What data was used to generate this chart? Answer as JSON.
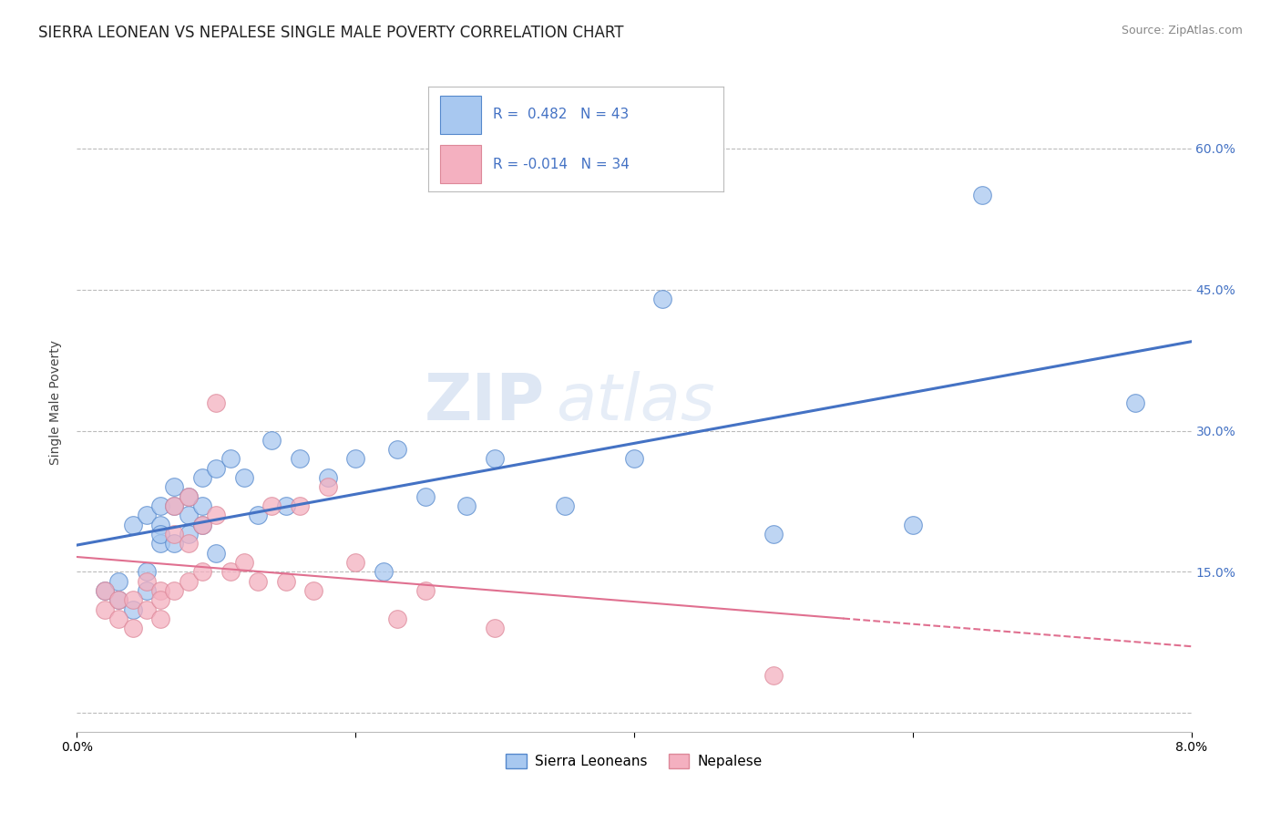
{
  "title": "SIERRA LEONEAN VS NEPALESE SINGLE MALE POVERTY CORRELATION CHART",
  "source": "Source: ZipAtlas.com",
  "ylabel": "Single Male Poverty",
  "xlim": [
    0.0,
    0.08
  ],
  "ylim": [
    -0.02,
    0.68
  ],
  "yticks": [
    0.0,
    0.15,
    0.3,
    0.45,
    0.6
  ],
  "ytick_labels": [
    "",
    "15.0%",
    "30.0%",
    "45.0%",
    "60.0%"
  ],
  "watermark_zip": "ZIP",
  "watermark_atlas": "atlas",
  "legend_blue_label": "Sierra Leoneans",
  "legend_pink_label": "Nepalese",
  "r_blue": " 0.482",
  "n_blue": "43",
  "r_pink": "-0.014",
  "n_pink": "34",
  "blue_fill": "#A8C8F0",
  "pink_fill": "#F4B0C0",
  "blue_edge": "#5588CC",
  "pink_edge": "#DD8899",
  "line_blue_color": "#4472C4",
  "line_pink_color": "#E07090",
  "grid_color": "#BBBBBB",
  "bg_color": "#FFFFFF",
  "title_fontsize": 12,
  "tick_fontsize": 10,
  "source_fontsize": 9,
  "blue_scatter_x": [
    0.002,
    0.003,
    0.003,
    0.004,
    0.004,
    0.005,
    0.005,
    0.005,
    0.006,
    0.006,
    0.006,
    0.006,
    0.007,
    0.007,
    0.007,
    0.008,
    0.008,
    0.008,
    0.009,
    0.009,
    0.009,
    0.01,
    0.01,
    0.011,
    0.012,
    0.013,
    0.014,
    0.015,
    0.016,
    0.018,
    0.02,
    0.022,
    0.023,
    0.025,
    0.028,
    0.03,
    0.035,
    0.04,
    0.042,
    0.05,
    0.06,
    0.065,
    0.076
  ],
  "blue_scatter_y": [
    0.13,
    0.12,
    0.14,
    0.11,
    0.2,
    0.13,
    0.21,
    0.15,
    0.18,
    0.22,
    0.2,
    0.19,
    0.22,
    0.24,
    0.18,
    0.23,
    0.19,
    0.21,
    0.2,
    0.22,
    0.25,
    0.17,
    0.26,
    0.27,
    0.25,
    0.21,
    0.29,
    0.22,
    0.27,
    0.25,
    0.27,
    0.15,
    0.28,
    0.23,
    0.22,
    0.27,
    0.22,
    0.27,
    0.44,
    0.19,
    0.2,
    0.55,
    0.33
  ],
  "pink_scatter_x": [
    0.002,
    0.002,
    0.003,
    0.003,
    0.004,
    0.004,
    0.005,
    0.005,
    0.006,
    0.006,
    0.006,
    0.007,
    0.007,
    0.007,
    0.008,
    0.008,
    0.008,
    0.009,
    0.009,
    0.01,
    0.01,
    0.011,
    0.012,
    0.013,
    0.014,
    0.015,
    0.016,
    0.017,
    0.018,
    0.02,
    0.023,
    0.025,
    0.03,
    0.05
  ],
  "pink_scatter_y": [
    0.11,
    0.13,
    0.1,
    0.12,
    0.09,
    0.12,
    0.11,
    0.14,
    0.1,
    0.13,
    0.12,
    0.22,
    0.13,
    0.19,
    0.14,
    0.23,
    0.18,
    0.15,
    0.2,
    0.21,
    0.33,
    0.15,
    0.16,
    0.14,
    0.22,
    0.14,
    0.22,
    0.13,
    0.24,
    0.16,
    0.1,
    0.13,
    0.09,
    0.04
  ]
}
